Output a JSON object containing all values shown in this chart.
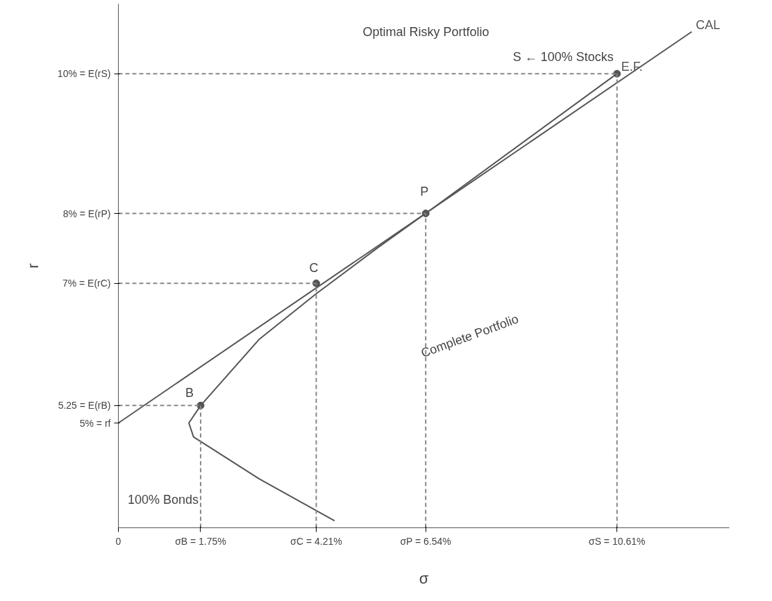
{
  "chart_data": {
    "type": "line",
    "xlabel": "σ",
    "ylabel": "r",
    "xlim": [
      0,
      13
    ],
    "ylim": [
      3.5,
      11
    ],
    "xticks": [
      {
        "value": 0,
        "label": "0"
      },
      {
        "value": 1.75,
        "label": "σB = 1.75%"
      },
      {
        "value": 4.21,
        "label": "σC = 4.21%"
      },
      {
        "value": 6.54,
        "label": "σP = 6.54%"
      },
      {
        "value": 10.61,
        "label": "σS = 10.61%"
      }
    ],
    "yticks": [
      {
        "value": 5,
        "label": "5% = rf"
      },
      {
        "value": 5.25,
        "label": "5.25 = E(rB)"
      },
      {
        "value": 7,
        "label": "7% = E(rC)"
      },
      {
        "value": 8,
        "label": "8% = E(rP)"
      },
      {
        "value": 10,
        "label": "10% = E(rS)"
      }
    ],
    "grid": false,
    "legend": false,
    "line_style": "solid",
    "marker": "none",
    "series": [
      {
        "name": "CAL",
        "color": "#555555",
        "x": [
          0,
          12.2
        ],
        "values": [
          5,
          10.6
        ]
      },
      {
        "name": "E.F.",
        "color": "#555555",
        "x": [
          4.6,
          3.0,
          1.6,
          1.5,
          1.75,
          3.0,
          4.21,
          5.5,
          6.54,
          10.61
        ],
        "values": [
          3.6,
          4.2,
          4.8,
          5.0,
          5.25,
          6.2,
          6.85,
          7.5,
          8,
          10
        ]
      },
      {
        "type": "scatter",
        "marker": "circle",
        "color": "#555555",
        "x": [
          1.75,
          4.21,
          6.54,
          10.61
        ],
        "values": [
          5.25,
          7,
          8,
          10
        ]
      },
      {
        "type": "line",
        "line_style": "dashed",
        "color": "#888888",
        "x": [
          0,
          10.61
        ],
        "values": [
          10,
          10
        ]
      },
      {
        "type": "line",
        "line_style": "dashed",
        "color": "#888888",
        "x": [
          0,
          6.54
        ],
        "values": [
          8,
          8
        ]
      },
      {
        "type": "line",
        "line_style": "dashed",
        "color": "#888888",
        "x": [
          0,
          4.21
        ],
        "values": [
          7,
          7
        ]
      },
      {
        "type": "line",
        "line_style": "dashed",
        "color": "#888888",
        "x": [
          0,
          1.75
        ],
        "values": [
          5.25,
          5.25
        ]
      },
      {
        "type": "line",
        "line_style": "dashed",
        "color": "#888888",
        "x": [
          1.75,
          1.75
        ],
        "values": [
          3.5,
          5.25
        ]
      },
      {
        "type": "line",
        "line_style": "dashed",
        "color": "#888888",
        "x": [
          4.21,
          4.21
        ],
        "values": [
          3.5,
          7
        ]
      },
      {
        "type": "line",
        "line_style": "dashed",
        "color": "#888888",
        "x": [
          6.54,
          6.54
        ],
        "values": [
          3.5,
          8
        ]
      },
      {
        "type": "line",
        "line_style": "dashed",
        "color": "#888888",
        "x": [
          10.61,
          10.61
        ],
        "values": [
          3.5,
          10
        ]
      }
    ],
    "annotations": [
      {
        "text": "B",
        "x": 1.75,
        "y": 5.25
      },
      {
        "text": "C",
        "x": 4.21,
        "y": 7
      },
      {
        "text": "P",
        "x": 6.54,
        "y": 8
      },
      {
        "text": "S ← 100% Stocks",
        "x": 10.61,
        "y": 10
      },
      "Optimal Risky Portfolio",
      "Complete Portfolio",
      "100% Bonds"
    ]
  }
}
